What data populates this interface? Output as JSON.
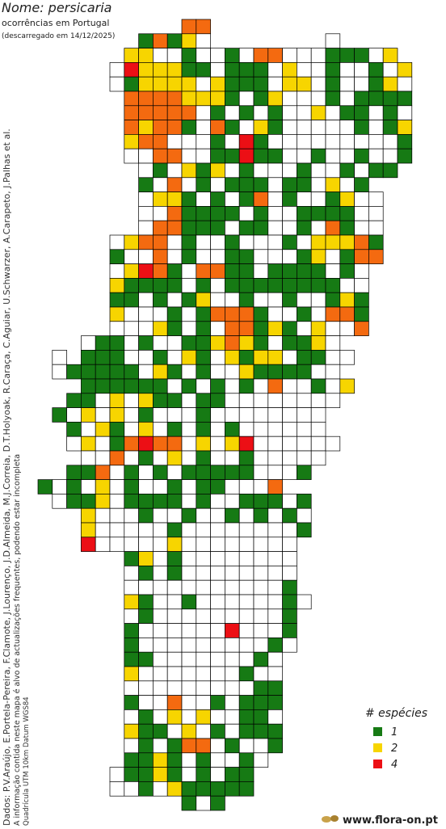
{
  "header": {
    "title": "Nome: persicaria",
    "subtitle": "ocorrências em Portugal",
    "downloaded": "(descarregado em 14/12/2025)"
  },
  "credits": {
    "data": "Dados: P.V.Araújo, E.Portela-Pereira, F.Clamote, J.Lourenço, J.D.Almeida, M.J.Correia, D.T.Holyoak, R.Caraça, C.Aguiar, U.Schwarzer, A.Carapeto, J.Palhas et al.",
    "note": "A informação contida neste mapa é alvo de actualizações frequentes, podendo estar incompleta",
    "grid": "Quadrícula UTM 10km Datum WGS84"
  },
  "legend": {
    "title": "# espécies",
    "items": [
      1,
      2,
      4
    ]
  },
  "map": {
    "colors": {
      "1": "#167a14",
      "2": "#f7d500",
      "3": "#f46a10",
      "4": "#ec0f15"
    },
    "grid": [
      "          33",
      "       1312.        .",
      "      22..1..1.33...111.2",
      "     .422211.111.2..1..1.2",
      "     .12222.2111.22.1..12.",
      "      33332221.12...1.1111",
      "      33333.1.1.1..2.11.1.",
      "      32331.31.21.....1.12",
      "      233...1.41.........1",
      "      ..33..11411..1..1..1",
      "       .1.212.1...1..1.11",
      "       1.3.1.111.11.2.1",
      "       .221.1.13.1..12..",
      "       ..31111.1..1111..",
      "       .33111.11..1.31..",
      "     .233.1..1...1.22231",
      "     1..3.1..11...12.133",
      "     .2431.3311.1111.1.",
      "     21111.1.11111111..",
      "     11.1.12..1..1..121",
      "     2...1.13331..1.331",
      "     ...21.1.33121.2..3",
      "   .11.1..112321.112.",
      " . 111..1.21.2122.11..",
      " .11111.21.1..21111..",
      "   111111.1.1.1.3..1.2",
      "  11.2.211.11........",
      " 1.2.2.1...1........",
      "  1.21.2.1.1.1......",
      "  .2.13433.2.24......",
      "   ..3.1.2.1..1.....",
      "  113.1.1.11111...1",
      "1.1.2.1..1.11...3",
      " .112.1111.1..111.1",
      "   2...1..1..1.1.1.",
      "   2.....1........1",
      "   4.....2........",
      "      12.1........",
      "      .1.1........",
      "      ...........1",
      "      21..1......1.",
      "      .1.........1",
      "      1......4...1",
      "      1.........1.",
      "      11.......1.",
      "      2.......1..",
      "      .........11",
      "      1..3..1.111",
      "      .1.2.2..11.",
      "      211.2.1.111",
      "      .1.133.1..1",
      "      1121.1..1.",
      "     .1121.1.11",
      "     ..1.211111",
      "          1.1"
    ]
  },
  "footer": {
    "site": "www.flora-on.pt"
  }
}
